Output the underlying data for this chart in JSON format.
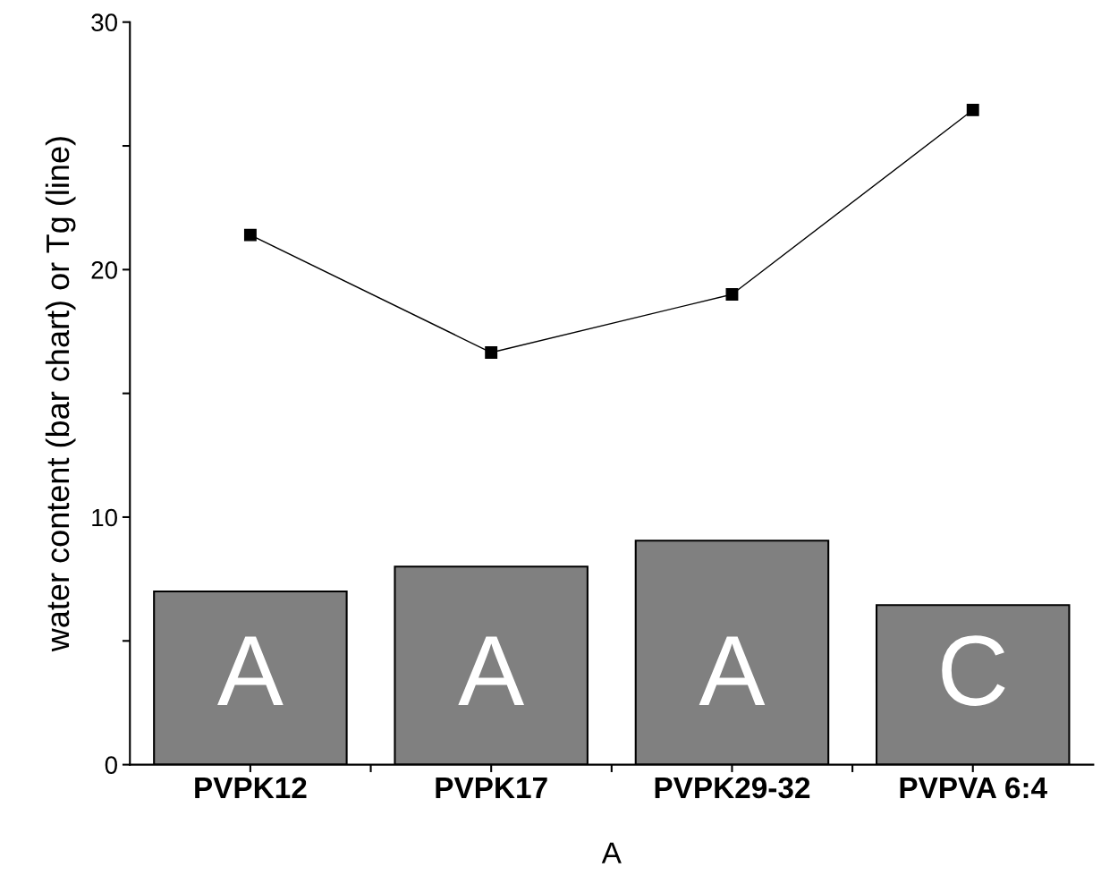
{
  "chart_data": {
    "type": "bar",
    "xlabel": "A",
    "ylabel": "water content (bar chart) or Tg (line)",
    "categories": [
      "PVPK12",
      "PVPK17",
      "PVPK29-32",
      "PVPVA 6:4"
    ],
    "series": [
      {
        "color": "#808080",
        "values": [
          7.0,
          8.0,
          9.05,
          6.45
        ]
      },
      {
        "type": "line",
        "color": "#000000",
        "marker": "square",
        "line_style": "solid",
        "values": [
          21.4,
          16.65,
          19.0,
          26.45
        ]
      }
    ],
    "ylim": [
      0,
      30
    ],
    "yticks": [
      0,
      {
        "value": 5,
        "label": null
      },
      10,
      {
        "value": 15,
        "label": null
      },
      20,
      {
        "value": 25,
        "label": null
      },
      30
    ],
    "annotations": [
      "A",
      "A",
      "A",
      "C"
    ],
    "grid": false,
    "legend": false
  }
}
